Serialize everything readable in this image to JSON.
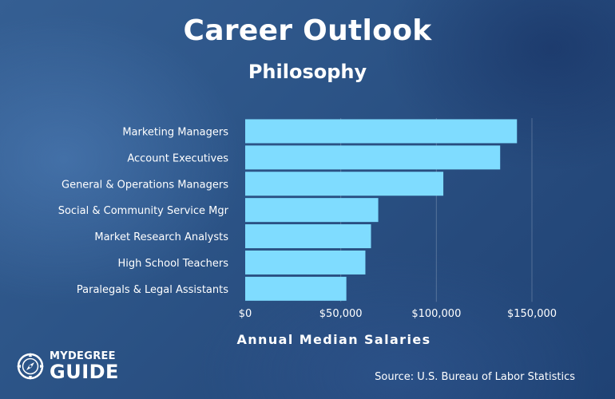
{
  "header": {
    "title": "Career Outlook",
    "subtitle": "Philosophy"
  },
  "chart_data": {
    "type": "bar",
    "orientation": "horizontal",
    "title": "Career Outlook",
    "subtitle": "Philosophy",
    "xlabel": "Annual Median Salaries",
    "ylabel": "",
    "categories": [
      "Marketing Managers",
      "Account Executives",
      "General & Operations Managers",
      "Social & Community Service Mgr",
      "Market Research Analysts",
      "High School Teachers",
      "Paralegals & Legal Assistants"
    ],
    "values": [
      142170,
      133380,
      103650,
      69600,
      65810,
      62870,
      52920
    ],
    "xlim": [
      0,
      150000
    ],
    "xticks": [
      0,
      50000,
      100000,
      150000
    ],
    "xtick_labels": [
      "$0",
      "$50,000",
      "$100,000",
      "$150,000"
    ],
    "grid": true,
    "bar_color": "#7fdcff"
  },
  "footer": {
    "source": "Source: U.S. Bureau of Labor Statistics",
    "logo_line1": "MYDEGREE",
    "logo_line2": "GUIDE"
  }
}
